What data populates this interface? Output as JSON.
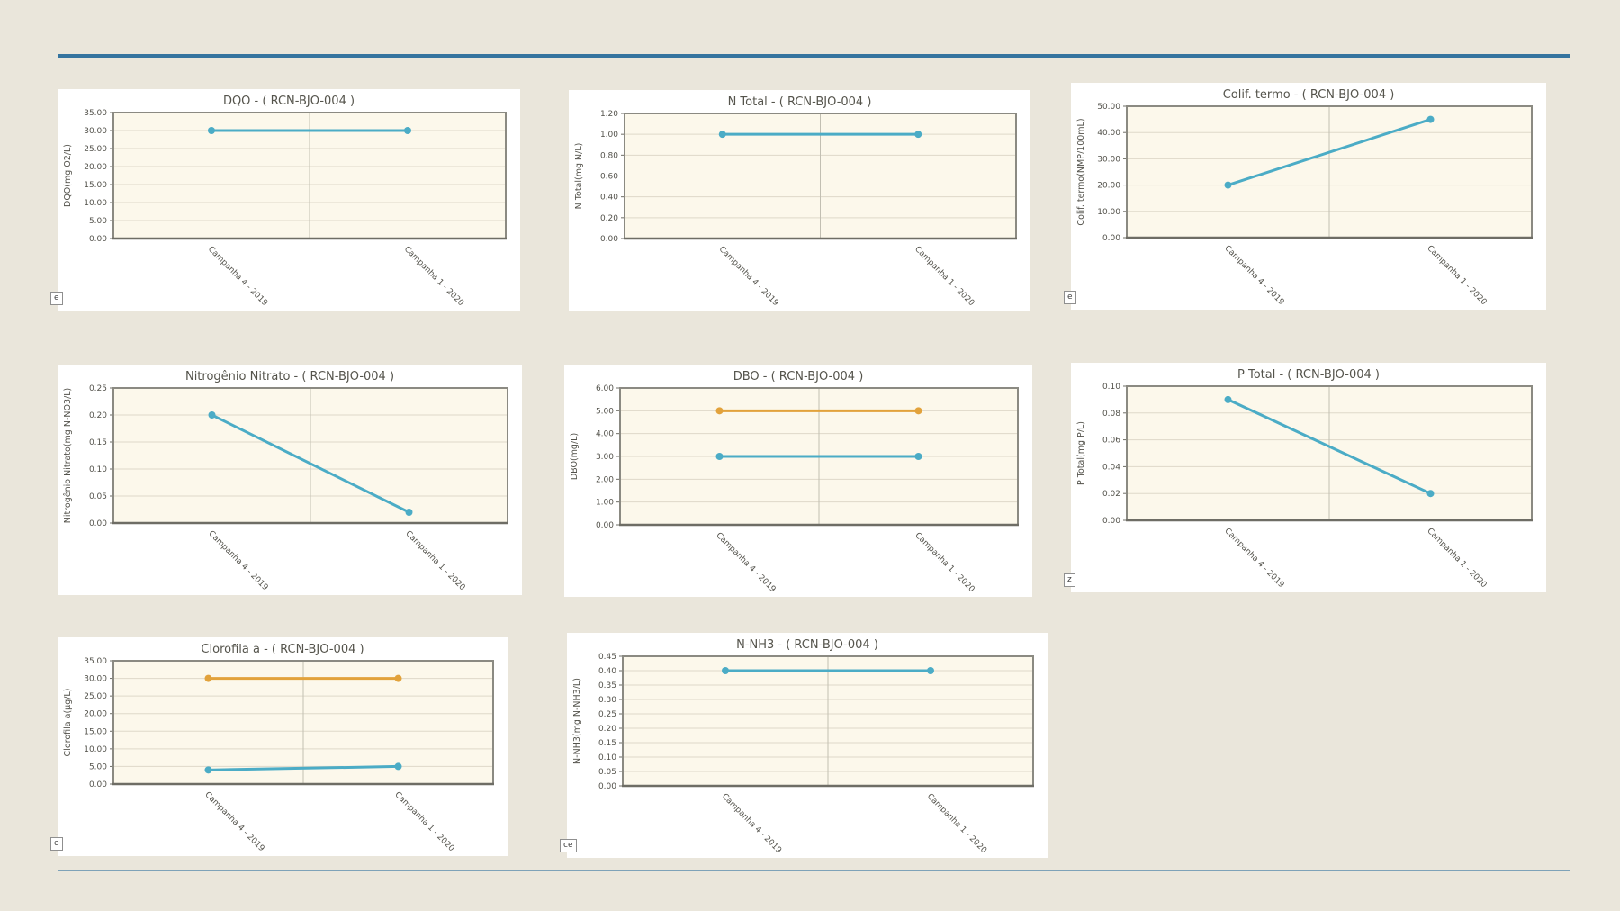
{
  "page": {
    "station_code": "RCN-BJO-004",
    "background_color": "#EAE6DB",
    "top_rule_color": "#35749F",
    "bottom_rule_color": "#7EA2B8",
    "plot_background_color": "#FCF8EB",
    "line_color_teal": "#4BACC6",
    "line_color_orange": "#E2A23B"
  },
  "chart_data": [
    {
      "id": "dqo",
      "type": "line",
      "title": "DQO - ( RCN-BJO-004 )",
      "ylabel": "DQO(mg O2/L)",
      "categories": [
        "Campanha 4 - 2019",
        "Campanha 1 - 2020"
      ],
      "series": [
        {
          "color": "#4BACC6",
          "values": [
            30.0,
            30.0
          ]
        }
      ],
      "ylim": [
        0,
        35
      ],
      "ytick_step": 5,
      "tick_decimals": 2,
      "grid": true,
      "legend": "none",
      "artifact_text": "e"
    },
    {
      "id": "n-total",
      "type": "line",
      "title": "N Total - ( RCN-BJO-004 )",
      "ylabel": "N Total(mg N/L)",
      "categories": [
        "Campanha 4 - 2019",
        "Campanha 1 - 2020"
      ],
      "series": [
        {
          "color": "#4BACC6",
          "values": [
            1.0,
            1.0
          ]
        }
      ],
      "ylim": [
        0,
        1.2
      ],
      "ytick_step": 0.2,
      "tick_decimals": 2,
      "grid": true,
      "legend": "none",
      "artifact_text": ""
    },
    {
      "id": "colif-termo",
      "type": "line",
      "title": "Colif. termo - ( RCN-BJO-004 )",
      "ylabel": "Colif. termo(NMP/100mL)",
      "categories": [
        "Campanha 4 - 2019",
        "Campanha 1 - 2020"
      ],
      "series": [
        {
          "color": "#4BACC6",
          "values": [
            20.0,
            45.0
          ]
        }
      ],
      "ylim": [
        0,
        50
      ],
      "ytick_step": 10,
      "tick_decimals": 2,
      "grid": true,
      "legend": "none",
      "artifact_text": "e"
    },
    {
      "id": "nitrogenio-nitrato",
      "type": "line",
      "title": "Nitrogênio Nitrato - ( RCN-BJO-004 )",
      "ylabel": "Nitrogênio Nitrato(mg N-NO3/L)",
      "categories": [
        "Campanha 4 - 2019",
        "Campanha 1 - 2020"
      ],
      "series": [
        {
          "color": "#4BACC6",
          "values": [
            0.2,
            0.02
          ]
        }
      ],
      "ylim": [
        0,
        0.25
      ],
      "ytick_step": 0.05,
      "tick_decimals": 2,
      "grid": true,
      "legend": "none",
      "artifact_text": ""
    },
    {
      "id": "dbo",
      "type": "line",
      "title": "DBO - ( RCN-BJO-004 )",
      "ylabel": "DBO(mg/L)",
      "categories": [
        "Campanha 4 - 2019",
        "Campanha 1 - 2020"
      ],
      "series": [
        {
          "color": "#E2A23B",
          "values": [
            5.0,
            5.0
          ]
        },
        {
          "color": "#4BACC6",
          "values": [
            3.0,
            3.0
          ]
        }
      ],
      "ylim": [
        0,
        6
      ],
      "ytick_step": 1,
      "tick_decimals": 2,
      "grid": true,
      "legend": "none",
      "artifact_text": ""
    },
    {
      "id": "p-total",
      "type": "line",
      "title": "P Total - ( RCN-BJO-004 )",
      "ylabel": "P Total(mg P/L)",
      "categories": [
        "Campanha 4 - 2019",
        "Campanha 1 - 2020"
      ],
      "series": [
        {
          "color": "#4BACC6",
          "values": [
            0.09,
            0.02
          ]
        }
      ],
      "ylim": [
        0,
        0.1
      ],
      "ytick_step": 0.02,
      "tick_decimals": 2,
      "grid": true,
      "legend": "none",
      "artifact_text": "z"
    },
    {
      "id": "clorofila-a",
      "type": "line",
      "title": "Clorofila a - ( RCN-BJO-004 )",
      "ylabel": "Clorofila a(µg/L)",
      "categories": [
        "Campanha 4 - 2019",
        "Campanha 1 - 2020"
      ],
      "series": [
        {
          "color": "#E2A23B",
          "values": [
            30.0,
            30.0
          ]
        },
        {
          "color": "#4BACC6",
          "values": [
            4.0,
            5.0
          ]
        }
      ],
      "ylim": [
        0,
        35
      ],
      "ytick_step": 5,
      "tick_decimals": 2,
      "grid": true,
      "legend": "none",
      "artifact_text": "e"
    },
    {
      "id": "n-nh3",
      "type": "line",
      "title": "N-NH3 - ( RCN-BJO-004 )",
      "ylabel": "N-NH3(mg N-NH3/L)",
      "categories": [
        "Campanha 4 - 2019",
        "Campanha 1 - 2020"
      ],
      "series": [
        {
          "color": "#4BACC6",
          "values": [
            0.4,
            0.4
          ]
        }
      ],
      "ylim": [
        0,
        0.45
      ],
      "ytick_step": 0.05,
      "tick_decimals": 2,
      "grid": true,
      "legend": "none",
      "artifact_text": "ce"
    }
  ]
}
